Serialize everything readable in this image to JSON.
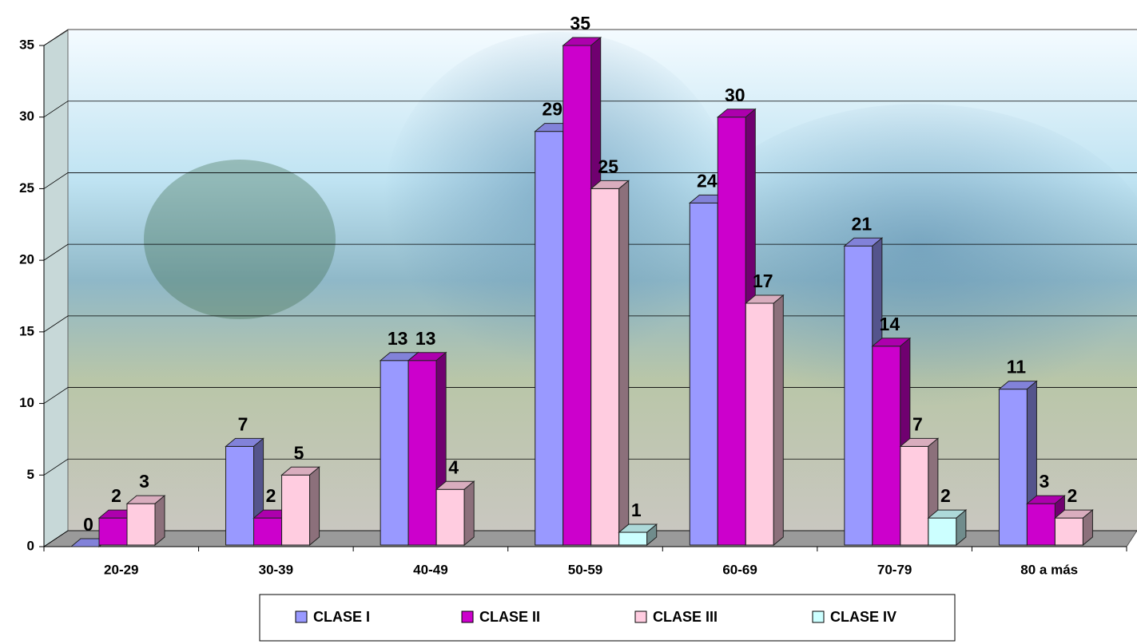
{
  "chart_data": {
    "type": "bar3d",
    "categories": [
      "20-29",
      "30-39",
      "40-49",
      "50-59",
      "60-69",
      "70-79",
      "80 a más"
    ],
    "series": [
      {
        "name": "CLASE I",
        "color": "#9999ff",
        "values": [
          0,
          7,
          13,
          29,
          24,
          21,
          11
        ]
      },
      {
        "name": "CLASE II",
        "color": "#cc00cc",
        "values": [
          2,
          2,
          13,
          35,
          30,
          14,
          3
        ]
      },
      {
        "name": "CLASE III",
        "color": "#ffcce0",
        "values": [
          3,
          5,
          4,
          25,
          17,
          7,
          2
        ]
      },
      {
        "name": "CLASE IV",
        "color": "#ccffff",
        "values": [
          null,
          null,
          null,
          1,
          null,
          2,
          null
        ]
      }
    ],
    "ylim": [
      0,
      35
    ],
    "yticks": [
      0,
      5,
      10,
      15,
      20,
      25,
      30,
      35
    ],
    "grid": true,
    "legend": "bottom"
  }
}
